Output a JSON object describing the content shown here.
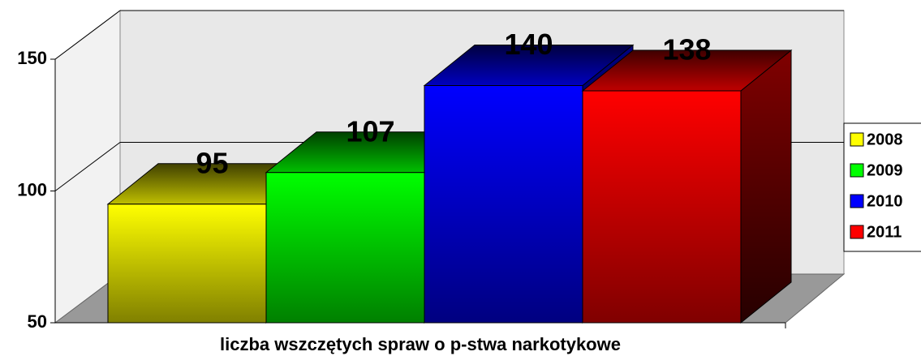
{
  "chart_data": {
    "type": "bar3d",
    "categories": [
      "liczba wszczętych spraw o p-stwa narkotykowe"
    ],
    "series": [
      {
        "name": "2008",
        "color": "#ffff00",
        "values": [
          95
        ]
      },
      {
        "name": "2009",
        "color": "#00ff00",
        "values": [
          107
        ]
      },
      {
        "name": "2010",
        "color": "#0000ff",
        "values": [
          140
        ]
      },
      {
        "name": "2011",
        "color": "#ff0000",
        "values": [
          138
        ]
      }
    ],
    "ylim": [
      50,
      150
    ],
    "yticks": [
      50,
      100,
      150
    ],
    "grid": true,
    "legend": "right"
  }
}
